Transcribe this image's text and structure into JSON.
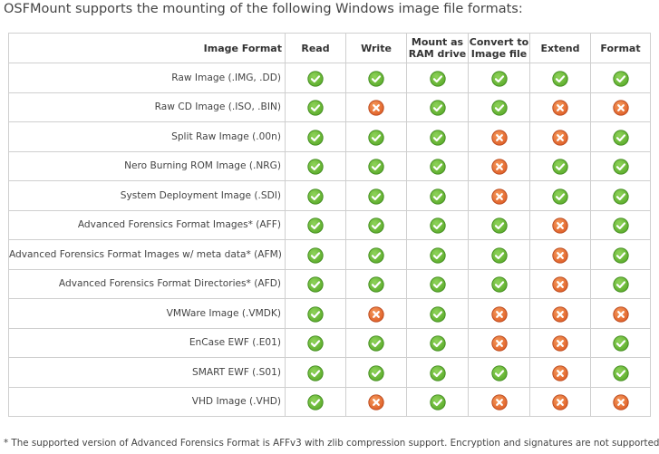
{
  "intro": "OSFMount supports the mounting of the following Windows image file formats:",
  "table": {
    "headers": {
      "format": "Image Format",
      "read": "Read",
      "write": "Write",
      "mount_ram_line1": "Mount as",
      "mount_ram_line2": "RAM drive",
      "convert_line1": "Convert to",
      "convert_line2": "Image file",
      "extend": "Extend",
      "format_col": "Format"
    },
    "capability_keys": [
      "read",
      "write",
      "mount_ram",
      "convert",
      "extend",
      "format"
    ],
    "rows": [
      {
        "name": "Raw Image (.IMG, .DD)",
        "read": true,
        "write": true,
        "mount_ram": true,
        "convert": true,
        "extend": true,
        "format": true
      },
      {
        "name": "Raw CD Image (.ISO, .BIN)",
        "read": true,
        "write": false,
        "mount_ram": true,
        "convert": true,
        "extend": false,
        "format": false
      },
      {
        "name": "Split Raw Image (.00n)",
        "read": true,
        "write": true,
        "mount_ram": true,
        "convert": false,
        "extend": false,
        "format": true
      },
      {
        "name": "Nero Burning ROM Image (.NRG)",
        "read": true,
        "write": true,
        "mount_ram": true,
        "convert": false,
        "extend": true,
        "format": true
      },
      {
        "name": "System Deployment Image (.SDI)",
        "read": true,
        "write": true,
        "mount_ram": true,
        "convert": false,
        "extend": true,
        "format": true
      },
      {
        "name": "Advanced Forensics Format Images* (AFF)",
        "read": true,
        "write": true,
        "mount_ram": true,
        "convert": true,
        "extend": false,
        "format": true
      },
      {
        "name": "Advanced Forensics Format Images w/ meta data* (AFM)",
        "read": true,
        "write": true,
        "mount_ram": true,
        "convert": true,
        "extend": false,
        "format": true
      },
      {
        "name": "Advanced Forensics Format Directories* (AFD)",
        "read": true,
        "write": true,
        "mount_ram": true,
        "convert": true,
        "extend": false,
        "format": true
      },
      {
        "name": "VMWare Image (.VMDK)",
        "read": true,
        "write": false,
        "mount_ram": true,
        "convert": false,
        "extend": false,
        "format": false
      },
      {
        "name": "EnCase EWF (.E01)",
        "read": true,
        "write": true,
        "mount_ram": true,
        "convert": false,
        "extend": false,
        "format": true
      },
      {
        "name": "SMART EWF (.S01)",
        "read": true,
        "write": true,
        "mount_ram": true,
        "convert": true,
        "extend": false,
        "format": true
      },
      {
        "name": "VHD Image (.VHD)",
        "read": true,
        "write": false,
        "mount_ram": true,
        "convert": false,
        "extend": false,
        "format": false
      }
    ]
  },
  "icons": {
    "supported": "check-icon",
    "unsupported": "cross-icon"
  },
  "colors": {
    "check_fill": "#5fae2e",
    "check_ring": "#3f8a1c",
    "cross_fill": "#e0622a",
    "cross_ring": "#b8461a",
    "border": "#cfcfcf"
  },
  "footnote": "* The supported version of Advanced Forensics Format is AFFv3 with zlib compression support. Encryption and signatures are not supported."
}
